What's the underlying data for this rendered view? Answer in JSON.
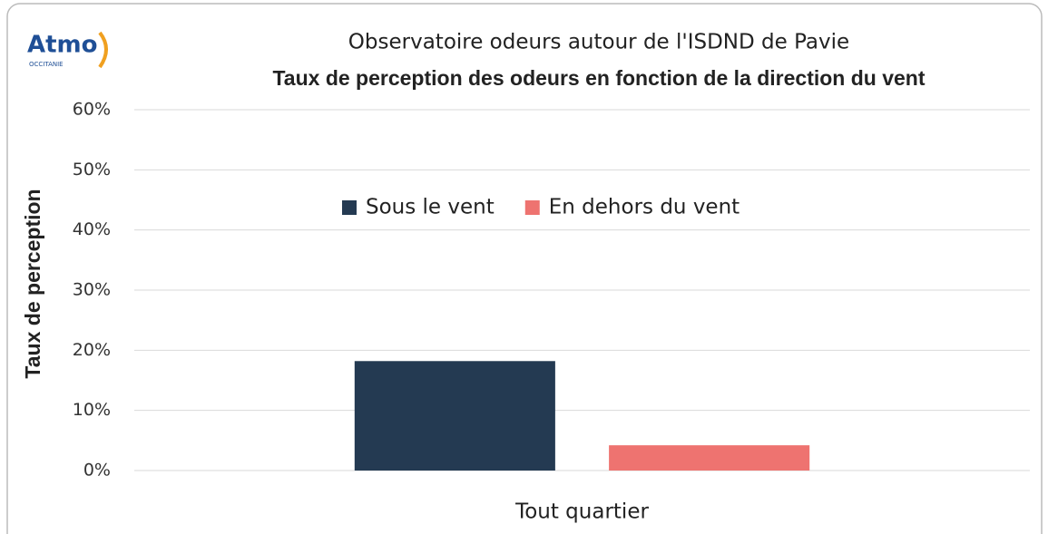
{
  "chart_data": {
    "type": "bar",
    "logo": {
      "text": "Atmo",
      "subtext": "OCCITANIE"
    },
    "subtitle": "Observatoire odeurs autour de l'ISDND de Pavie",
    "title": "Taux de perception des odeurs en fonction de la direction du vent",
    "y_label": "Taux de perception",
    "categories": [
      "Tout quartier"
    ],
    "series": [
      {
        "name": "Sous le vent",
        "color": "#243a52",
        "values": [
          18.2
        ]
      },
      {
        "name": "En dehors du vent",
        "color": "#ee7370",
        "values": [
          4.2
        ]
      }
    ],
    "ylim": [
      0,
      60
    ],
    "yticks": [
      {
        "value": 0,
        "label": "0%"
      },
      {
        "value": 10,
        "label": "10%"
      },
      {
        "value": 20,
        "label": "20%"
      },
      {
        "value": 30,
        "label": "30%"
      },
      {
        "value": 40,
        "label": "40%"
      },
      {
        "value": 50,
        "label": "50%"
      },
      {
        "value": 60,
        "label": "60%"
      }
    ],
    "grid": true,
    "legend": "top"
  }
}
